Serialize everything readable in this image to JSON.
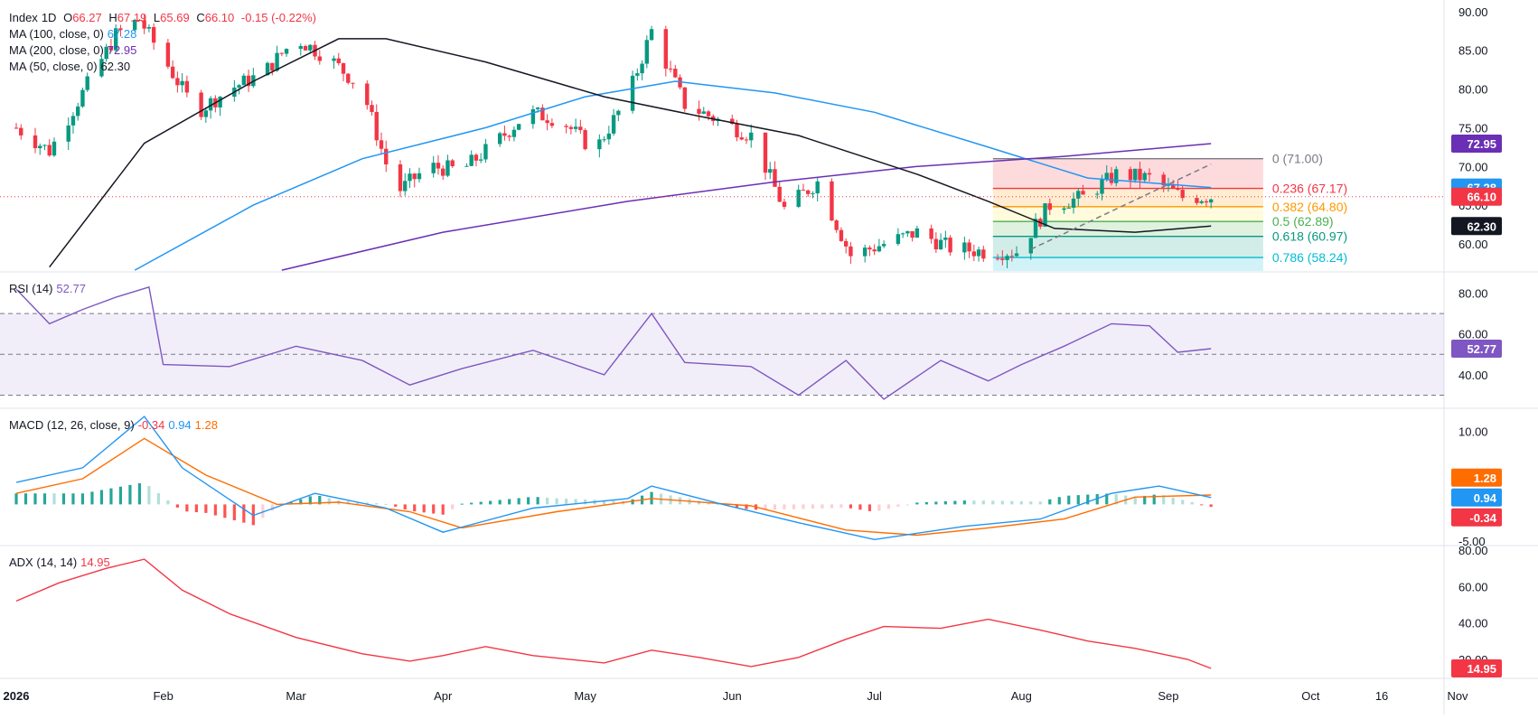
{
  "header": {
    "symbol": "Index",
    "interval": "1D",
    "open_label": "O",
    "open": "66.27",
    "high_label": "H",
    "high": "67.19",
    "low_label": "L",
    "low": "65.69",
    "close_label": "C",
    "close": "66.10",
    "change": "-0.15 (-0.22%)"
  },
  "legend": {
    "ma100": {
      "label": "MA (100, close, 0)",
      "value": "67.28",
      "color": "#2196f3"
    },
    "ma200": {
      "label": "MA (200, close, 0)",
      "value": "72.95",
      "color": "#6a2fb5"
    },
    "ma50": {
      "label": "MA (50, close, 0)",
      "value": "62.30",
      "color": "#131722"
    },
    "rsi": {
      "label": "RSI (14)",
      "value": "52.77",
      "color": "#7e57c2"
    },
    "macd": {
      "label": "MACD (12, 26, close, 9)",
      "hist": "-0.34",
      "macd": "0.94",
      "signal": "1.28"
    },
    "adx": {
      "label": "ADX (14, 14)",
      "value": "14.95",
      "color": "#f23645"
    }
  },
  "colors": {
    "up": "#089981",
    "down": "#f23645",
    "ma100": "#2196f3",
    "ma200": "#6a2fb5",
    "ma50": "#131722",
    "rsi": "#7e57c2",
    "macd": "#2196f3",
    "signal": "#ff6d00",
    "hist_up_strong": "#26a69a",
    "hist_up_weak": "#b2dfdb",
    "hist_dn_strong": "#ff5252",
    "hist_dn_weak": "#ffcdd2"
  },
  "chart_data": {
    "type": "candlestick",
    "x_axis": {
      "ticks": [
        {
          "label": "2026",
          "date": "2026-01-01",
          "bold": true
        },
        {
          "label": "Feb",
          "date": "2026-02-01"
        },
        {
          "label": "Mar",
          "date": "2026-03-01"
        },
        {
          "label": "Apr",
          "date": "2026-04-01"
        },
        {
          "label": "May",
          "date": "2026-05-01"
        },
        {
          "label": "Jun",
          "date": "2026-06-01"
        },
        {
          "label": "Jul",
          "date": "2026-07-01"
        },
        {
          "label": "Aug",
          "date": "2026-08-01"
        },
        {
          "label": "Sep",
          "date": "2026-09-01"
        },
        {
          "label": "Oct",
          "date": "2026-10-01"
        },
        {
          "label": "16",
          "date": "2026-10-16"
        },
        {
          "label": "Nov",
          "date": "2026-11-01"
        }
      ]
    },
    "price_panel": {
      "y_ticks": [
        "60.00",
        "65.00",
        "70.00",
        "75.00",
        "80.00",
        "85.00",
        "90.00"
      ],
      "y_range": [
        56.5,
        91.5
      ],
      "candle_anchors": [
        [
          "2026-01-01",
          75.0
        ],
        [
          "2026-01-08",
          72.0
        ],
        [
          "2026-01-15",
          79.5
        ],
        [
          "2026-01-22",
          87.0
        ],
        [
          "2026-01-27",
          89.0
        ],
        [
          "2026-02-01",
          84.0
        ],
        [
          "2026-02-08",
          77.0
        ],
        [
          "2026-02-15",
          80.0
        ],
        [
          "2026-02-22",
          82.0
        ],
        [
          "2026-03-01",
          86.5
        ],
        [
          "2026-03-08",
          84.0
        ],
        [
          "2026-03-15",
          80.0
        ],
        [
          "2026-03-22",
          66.5
        ],
        [
          "2026-03-29",
          70.0
        ],
        [
          "2026-04-05",
          69.5
        ],
        [
          "2026-04-12",
          73.0
        ],
        [
          "2026-04-19",
          77.0
        ],
        [
          "2026-04-26",
          76.0
        ],
        [
          "2026-05-03",
          72.0
        ],
        [
          "2026-05-10",
          79.0
        ],
        [
          "2026-05-15",
          87.5
        ],
        [
          "2026-05-22",
          78.0
        ],
        [
          "2026-05-29",
          76.0
        ],
        [
          "2026-06-05",
          74.0
        ],
        [
          "2026-06-12",
          64.5
        ],
        [
          "2026-06-19",
          68.0
        ],
        [
          "2026-06-26",
          58.5
        ],
        [
          "2026-07-03",
          60.0
        ],
        [
          "2026-07-10",
          61.5
        ],
        [
          "2026-07-17",
          59.5
        ],
        [
          "2026-07-24",
          59.0
        ],
        [
          "2026-07-31",
          59.0
        ],
        [
          "2026-08-07",
          65.0
        ],
        [
          "2026-08-14",
          66.0
        ],
        [
          "2026-08-21",
          69.0
        ],
        [
          "2026-08-28",
          68.5
        ],
        [
          "2026-09-04",
          66.0
        ],
        [
          "2026-09-10",
          66.1
        ]
      ],
      "series": [
        {
          "name": "MA (100, close, 0)",
          "points": [
            [
              "2026-01-26",
              56.6
            ],
            [
              "2026-02-20",
              65.0
            ],
            [
              "2026-03-15",
              71.0
            ],
            [
              "2026-04-10",
              75.0
            ],
            [
              "2026-05-01",
              79.0
            ],
            [
              "2026-05-20",
              81.0
            ],
            [
              "2026-06-10",
              79.5
            ],
            [
              "2026-07-01",
              77.0
            ],
            [
              "2026-07-25",
              72.5
            ],
            [
              "2026-08-15",
              68.5
            ],
            [
              "2026-09-10",
              67.28
            ]
          ]
        },
        {
          "name": "MA (200, close, 0)",
          "points": [
            [
              "2026-02-26",
              56.6
            ],
            [
              "2026-04-01",
              61.5
            ],
            [
              "2026-05-10",
              65.5
            ],
            [
              "2026-06-10",
              68.0
            ],
            [
              "2026-07-10",
              70.0
            ],
            [
              "2026-08-10",
              71.3
            ],
            [
              "2026-09-10",
              72.95
            ]
          ]
        },
        {
          "name": "MA (50, close, 0)",
          "points": [
            [
              "2026-01-08",
              57.0
            ],
            [
              "2026-01-28",
              73.0
            ],
            [
              "2026-02-20",
              81.0
            ],
            [
              "2026-03-10",
              86.5
            ],
            [
              "2026-03-20",
              86.5
            ],
            [
              "2026-04-10",
              83.5
            ],
            [
              "2026-05-05",
              79.0
            ],
            [
              "2026-05-25",
              76.5
            ],
            [
              "2026-06-15",
              74.0
            ],
            [
              "2026-07-10",
              69.0
            ],
            [
              "2026-07-25",
              65.5
            ],
            [
              "2026-08-08",
              62.0
            ],
            [
              "2026-08-25",
              61.5
            ],
            [
              "2026-09-10",
              62.3
            ]
          ]
        }
      ],
      "fibonacci": {
        "from_date": "2026-07-26",
        "to_date": "2026-09-21",
        "levels": [
          {
            "ratio": "0",
            "price": 71.0,
            "label": "0 (71.00)",
            "color": "#787b86"
          },
          {
            "ratio": "0.236",
            "price": 67.17,
            "label": "0.236 (67.17)",
            "color": "#f23645"
          },
          {
            "ratio": "0.382",
            "price": 64.8,
            "label": "0.382 (64.80)",
            "color": "#ff9800"
          },
          {
            "ratio": "0.5",
            "price": 62.89,
            "label": "0.5 (62.89)",
            "color": "#4caf50"
          },
          {
            "ratio": "0.618",
            "price": 60.97,
            "label": "0.618 (60.97)",
            "color": "#089981"
          },
          {
            "ratio": "0.786",
            "price": 58.24,
            "label": "0.786 (58.24)",
            "color": "#00bcd4"
          }
        ]
      },
      "trendline": [
        [
          "2026-08-03",
          59.3
        ],
        [
          "2026-09-10",
          70.3
        ]
      ],
      "last_price": 66.1,
      "price_badges": [
        {
          "value": "72.95",
          "price": 72.95,
          "color": "#6a2fb5"
        },
        {
          "value": "67.28",
          "price": 67.28,
          "color": "#2196f3"
        },
        {
          "value": "66.10",
          "price": 66.1,
          "color": "#f23645"
        },
        {
          "value": "62.30",
          "price": 62.3,
          "color": "#131722"
        }
      ]
    },
    "rsi_panel": {
      "y_ticks": [
        "40.00",
        "60.00",
        "80.00"
      ],
      "y_range": [
        24,
        90
      ],
      "bands": [
        30,
        50,
        70
      ],
      "points": [
        [
          "2026-01-01",
          82
        ],
        [
          "2026-01-08",
          65
        ],
        [
          "2026-01-15",
          72
        ],
        [
          "2026-01-22",
          78
        ],
        [
          "2026-01-29",
          83
        ],
        [
          "2026-02-01",
          45
        ],
        [
          "2026-02-15",
          44
        ],
        [
          "2026-03-01",
          54
        ],
        [
          "2026-03-15",
          47
        ],
        [
          "2026-03-25",
          35
        ],
        [
          "2026-04-05",
          43
        ],
        [
          "2026-04-20",
          52
        ],
        [
          "2026-05-05",
          40
        ],
        [
          "2026-05-15",
          70
        ],
        [
          "2026-05-22",
          46
        ],
        [
          "2026-06-05",
          44
        ],
        [
          "2026-06-15",
          30
        ],
        [
          "2026-06-25",
          47
        ],
        [
          "2026-07-03",
          28
        ],
        [
          "2026-07-15",
          47
        ],
        [
          "2026-07-25",
          37
        ],
        [
          "2026-08-01",
          45
        ],
        [
          "2026-08-10",
          54
        ],
        [
          "2026-08-20",
          65
        ],
        [
          "2026-08-28",
          64
        ],
        [
          "2026-09-03",
          51
        ],
        [
          "2026-09-10",
          52.77
        ]
      ],
      "badge": {
        "value": "52.77",
        "level": 52.77
      }
    },
    "macd_panel": {
      "y_ticks": [
        "-5.00",
        "10.00"
      ],
      "y_range": [
        -5.5,
        13
      ],
      "macd": [
        [
          "2026-01-01",
          3.0
        ],
        [
          "2026-01-15",
          5.0
        ],
        [
          "2026-01-28",
          12.0
        ],
        [
          "2026-02-05",
          5.0
        ],
        [
          "2026-02-20",
          -1.5
        ],
        [
          "2026-03-05",
          1.5
        ],
        [
          "2026-03-20",
          -0.5
        ],
        [
          "2026-04-01",
          -3.8
        ],
        [
          "2026-04-20",
          -0.5
        ],
        [
          "2026-05-10",
          0.8
        ],
        [
          "2026-05-15",
          2.5
        ],
        [
          "2026-05-30",
          0.0
        ],
        [
          "2026-06-15",
          -2.5
        ],
        [
          "2026-07-01",
          -4.8
        ],
        [
          "2026-07-20",
          -3.0
        ],
        [
          "2026-08-05",
          -2.0
        ],
        [
          "2026-08-20",
          1.5
        ],
        [
          "2026-08-30",
          2.5
        ],
        [
          "2026-09-10",
          0.94
        ]
      ],
      "signal": [
        [
          "2026-01-01",
          1.5
        ],
        [
          "2026-01-15",
          3.5
        ],
        [
          "2026-01-28",
          9.0
        ],
        [
          "2026-02-10",
          4.0
        ],
        [
          "2026-02-25",
          0.0
        ],
        [
          "2026-03-10",
          0.3
        ],
        [
          "2026-03-25",
          -1.0
        ],
        [
          "2026-04-05",
          -3.2
        ],
        [
          "2026-04-25",
          -1.0
        ],
        [
          "2026-05-15",
          0.8
        ],
        [
          "2026-06-05",
          -0.2
        ],
        [
          "2026-06-25",
          -3.5
        ],
        [
          "2026-07-10",
          -4.2
        ],
        [
          "2026-07-25",
          -3.2
        ],
        [
          "2026-08-10",
          -2.0
        ],
        [
          "2026-08-25",
          1.0
        ],
        [
          "2026-09-10",
          1.28
        ]
      ],
      "badges": [
        {
          "value": "1.28",
          "level": 1.28,
          "color": "#ff6d00"
        },
        {
          "value": "0.94",
          "level": 0.94,
          "color": "#2196f3"
        },
        {
          "value": "-0.34",
          "level": -0.34,
          "color": "#f23645"
        }
      ]
    },
    "adx_panel": {
      "y_ticks": [
        "20.00",
        "40.00",
        "60.00",
        "80.00"
      ],
      "y_range": [
        10,
        82
      ],
      "points": [
        [
          "2026-01-01",
          52
        ],
        [
          "2026-01-10",
          62
        ],
        [
          "2026-01-20",
          70
        ],
        [
          "2026-01-28",
          75
        ],
        [
          "2026-02-05",
          58
        ],
        [
          "2026-02-15",
          45
        ],
        [
          "2026-03-01",
          32
        ],
        [
          "2026-03-15",
          23
        ],
        [
          "2026-03-25",
          19
        ],
        [
          "2026-04-01",
          22
        ],
        [
          "2026-04-10",
          27
        ],
        [
          "2026-04-20",
          22
        ],
        [
          "2026-05-05",
          18
        ],
        [
          "2026-05-15",
          25
        ],
        [
          "2026-05-25",
          21
        ],
        [
          "2026-06-05",
          16
        ],
        [
          "2026-06-15",
          21
        ],
        [
          "2026-06-25",
          31
        ],
        [
          "2026-07-03",
          38
        ],
        [
          "2026-07-15",
          37
        ],
        [
          "2026-07-25",
          42
        ],
        [
          "2026-08-05",
          36
        ],
        [
          "2026-08-15",
          30
        ],
        [
          "2026-08-25",
          26
        ],
        [
          "2026-09-05",
          20
        ],
        [
          "2026-09-10",
          14.95
        ]
      ],
      "badge": {
        "value": "14.95",
        "level": 14.95
      }
    }
  }
}
